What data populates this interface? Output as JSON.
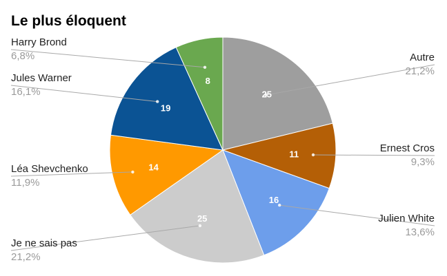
{
  "chart_data": {
    "type": "pie",
    "title": "Le plus éloquent",
    "start": "top",
    "direction": "clockwise",
    "legend": "none",
    "slices": [
      {
        "label": "Autre",
        "value": 25,
        "percent": "21,2%",
        "color": "#9e9e9e"
      },
      {
        "label": "Ernest Cros",
        "value": 11,
        "percent": "9,3%",
        "color": "#b45f06"
      },
      {
        "label": "Julien White",
        "value": 16,
        "percent": "13,6%",
        "color": "#6d9eeb"
      },
      {
        "label": "Je ne sais pas",
        "value": 25,
        "percent": "21,2%",
        "color": "#cccccc"
      },
      {
        "label": "Léa Shevchenko",
        "value": 14,
        "percent": "11,9%",
        "color": "#ff9900"
      },
      {
        "label": "Jules Warner",
        "value": 19,
        "percent": "16,1%",
        "color": "#0b5394"
      },
      {
        "label": "Harry Brond",
        "value": 8,
        "percent": "6,8%",
        "color": "#6aa84f"
      }
    ]
  }
}
